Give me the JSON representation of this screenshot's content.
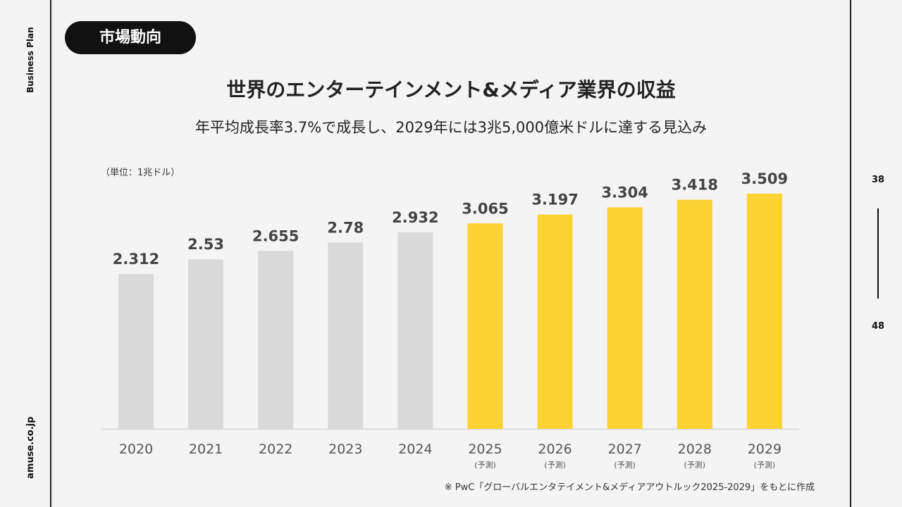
{
  "side": {
    "top_text": "Business Plan",
    "bottom_text": "amuse.co.jp"
  },
  "tag": "市場動向",
  "title": "世界のエンターテインメント&メディア業界の収益",
  "subtitle": "年平均成長率3.7%で成長し、2029年には3兆5,000億米ドルに達する見込み",
  "unit": "（単位：1兆ドル）",
  "page_indicator": {
    "current": "38",
    "total": "48"
  },
  "source": "※ PwC「グローバルエンタテイメント&メディアアウトルック2025-2029」をもとに作成",
  "colors": {
    "actual": "#d9d9d9",
    "forecast": "#fdd233",
    "axis": "#dddddd"
  },
  "chart_data": {
    "type": "bar",
    "categories": [
      "2020",
      "2021",
      "2022",
      "2023",
      "2024",
      "2025",
      "2026",
      "2027",
      "2028",
      "2029"
    ],
    "category_notes": [
      "",
      "",
      "",
      "",
      "",
      "(予測)",
      "(予測)",
      "(予測)",
      "(予測)",
      "(予測)"
    ],
    "values": [
      2.312,
      2.53,
      2.655,
      2.78,
      2.932,
      3.065,
      3.197,
      3.304,
      3.418,
      3.509
    ],
    "value_labels": [
      "2.312",
      "2.53",
      "2.655",
      "2.78",
      "2.932",
      "3.065",
      "3.197",
      "3.304",
      "3.418",
      "3.509"
    ],
    "forecast": [
      false,
      false,
      false,
      false,
      false,
      true,
      true,
      true,
      true,
      true
    ],
    "ylabel": "（単位：1兆ドル）",
    "ylim": [
      0,
      3.509
    ],
    "grid": false,
    "legend": "none"
  }
}
